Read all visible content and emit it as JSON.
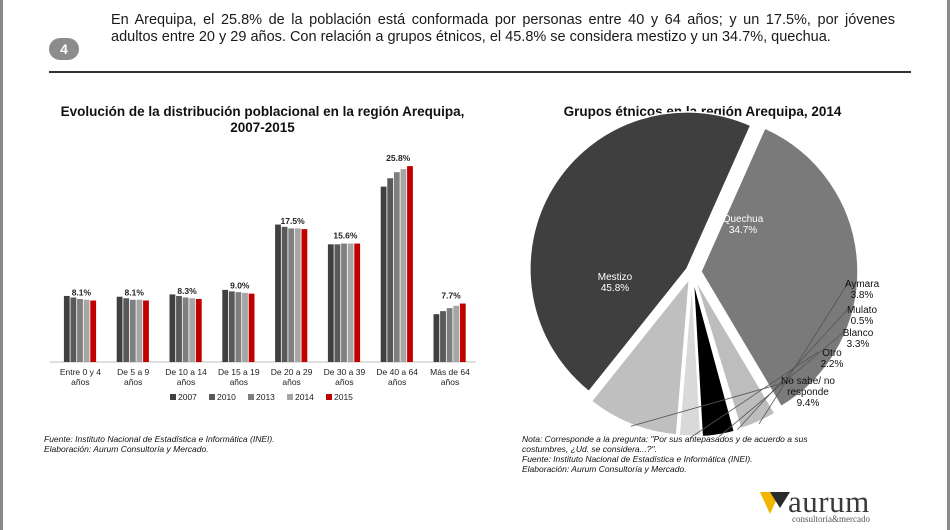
{
  "header": {
    "badge": "4",
    "text": "En Arequipa, el 25.8% de la población está conformada por personas entre 40 y 64 años; y un 17.5%, por jóvenes adultos entre 20 y 29 años. Con relación a grupos étnicos, el 45.8% se considera mestizo y un 34.7%, quechua."
  },
  "chart_data": [
    {
      "type": "bar",
      "title": "Evolución de la distribución poblacional en la región Arequipa, 2007-2015",
      "categories": [
        "Entre 0 y 4 años",
        "De 5 a 9 años",
        "De 10 a 14 años",
        "De 15 a 19 años",
        "De 20 a 29 años",
        "De 30 a 39 años",
        "De 40 a 64 años",
        "Más de 64 años"
      ],
      "category_lines": [
        [
          "Entre 0 y 4",
          "años"
        ],
        [
          "De 5 a 9",
          "años"
        ],
        [
          "De 10 a 14",
          "años"
        ],
        [
          "De 15 a 19",
          "años"
        ],
        [
          "De 20 a 29",
          "años"
        ],
        [
          "De 30 a 39",
          "años"
        ],
        [
          "De 40 a 64",
          "años"
        ],
        [
          "Más de 64",
          "años"
        ]
      ],
      "series": [
        {
          "name": "2007",
          "color": "#404040",
          "values": [
            8.7,
            8.6,
            8.9,
            9.5,
            18.1,
            15.5,
            23.1,
            6.3
          ]
        },
        {
          "name": "2010",
          "color": "#595959",
          "values": [
            8.5,
            8.4,
            8.7,
            9.3,
            17.8,
            15.5,
            24.2,
            6.7
          ]
        },
        {
          "name": "2013",
          "color": "#7f7f7f",
          "values": [
            8.3,
            8.2,
            8.5,
            9.2,
            17.6,
            15.6,
            25.0,
            7.1
          ]
        },
        {
          "name": "2014",
          "color": "#a6a6a6",
          "values": [
            8.2,
            8.2,
            8.4,
            9.1,
            17.6,
            15.6,
            25.4,
            7.4
          ]
        },
        {
          "name": "2015",
          "color": "#c00000",
          "values": [
            8.1,
            8.1,
            8.3,
            9.0,
            17.5,
            15.6,
            25.8,
            7.7
          ]
        }
      ],
      "data_labels": [
        "8.1%",
        "8.1%",
        "8.3%",
        "9.0%",
        "17.5%",
        "15.6%",
        "25.8%",
        "7.7%"
      ],
      "ylim": [
        0,
        27
      ],
      "legend": "bottom",
      "grid": false
    },
    {
      "type": "pie",
      "title": "Grupos étnicos en la región Arequipa, 2014",
      "slices": [
        {
          "label": "Quechua",
          "value": 34.7,
          "display": "34.7%",
          "color": "#7a7a7a"
        },
        {
          "label": "Aymara",
          "value": 3.8,
          "display": "3.8%",
          "color": "#bdbdbd"
        },
        {
          "label": "Mulato",
          "value": 0.5,
          "display": "0.5%",
          "color": "#ffffff"
        },
        {
          "label": "Blanco",
          "value": 3.3,
          "display": "3.3%",
          "color": "#000000"
        },
        {
          "label": "Otro",
          "value": 2.2,
          "display": "2.2%",
          "color": "#d9d9d9"
        },
        {
          "label": "No sabe/ no responde",
          "label_lines": [
            "No sabe/ no",
            "responde"
          ],
          "value": 9.4,
          "display": "9.4%",
          "color": "#bfbfbf"
        },
        {
          "label": "Mestizo",
          "value": 45.8,
          "display": "45.8%",
          "color": "#3f3f3f"
        }
      ]
    }
  ],
  "notes": {
    "left": [
      "Fuente: Instituto Nacional de Estadística e Informática (INEI).",
      "Elaboración: Aurum Consultoría y Mercado."
    ],
    "right": [
      "Nota: Corresponde a la pregunta: \"Por sus antepasados y de acuerdo a sus",
      "costumbres, ¿Ud. se considera...?\".",
      "Fuente: Instituto Nacional de Estadística e Informática (INEI).",
      "Elaboración: Aurum Consultoría y Mercado."
    ]
  },
  "logo": {
    "word": "aurum",
    "sub": "consultoría&mercado"
  },
  "colors": {
    "accent": "#c00000",
    "rule": "#333333"
  }
}
